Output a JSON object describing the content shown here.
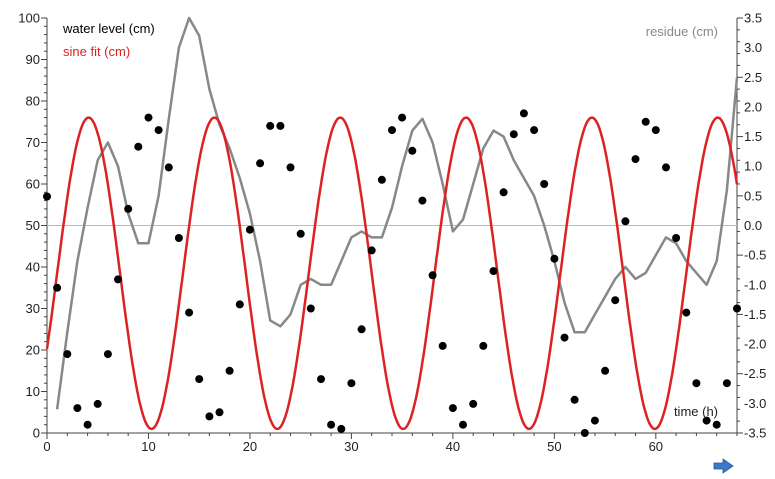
{
  "chart_data": {
    "type": "line",
    "title": "",
    "xlabel": "time (h)",
    "ylabel_left": "",
    "ylabel_right": "",
    "xlim": [
      0,
      68
    ],
    "xticks": [
      0,
      10,
      20,
      30,
      40,
      50,
      60
    ],
    "ylim_left": [
      0,
      100
    ],
    "yticks_left": [
      0,
      10,
      20,
      30,
      40,
      50,
      60,
      70,
      80,
      90,
      100
    ],
    "ylim_right": [
      -3.5,
      3.5
    ],
    "yticks_right": [
      "-3.5",
      "-3.0",
      "-2.5",
      "-2.0",
      "-1.5",
      "-1.0",
      "-0.5",
      "0.0",
      "0.5",
      "1.0",
      "1.5",
      "2.0",
      "2.5",
      "3.0",
      "3.5"
    ],
    "grid": false,
    "legend_left": [
      {
        "name": "water level (cm)",
        "color": "#000000"
      },
      {
        "name": "sine fit (cm)",
        "color": "#dd2222"
      }
    ],
    "legend_right": {
      "name": "residue (cm)",
      "color": "#888888"
    },
    "sine_fit": {
      "mean": 38.5,
      "amplitude": 37.5,
      "period_h": 12.4,
      "phase_h": 13.4,
      "color": "#dd2222"
    },
    "water_level": {
      "color": "#000000",
      "x": [
        0,
        1,
        2,
        3,
        4,
        5,
        6,
        7,
        8,
        9,
        10,
        11,
        12,
        13,
        14,
        15,
        16,
        17,
        18,
        19,
        20,
        21,
        22,
        23,
        24,
        25,
        26,
        27,
        28,
        29,
        30,
        31,
        32,
        33,
        34,
        35,
        36,
        37,
        38,
        39,
        40,
        41,
        42,
        43,
        44,
        45,
        46,
        47,
        48,
        49,
        50,
        51,
        52,
        53,
        54,
        55,
        56,
        57,
        58,
        59,
        60,
        61,
        62,
        63,
        64,
        65,
        66,
        67,
        68
      ],
      "y": [
        57,
        35,
        19,
        6,
        2,
        7,
        19,
        37,
        54,
        69,
        76,
        73,
        64,
        47,
        29,
        13,
        4,
        5,
        15,
        31,
        49,
        65,
        74,
        74,
        64,
        48,
        30,
        13,
        2,
        1,
        12,
        25,
        44,
        61,
        73,
        76,
        68,
        56,
        38,
        21,
        6,
        2,
        7,
        21,
        39,
        58,
        72,
        77,
        73,
        60,
        42,
        23,
        8,
        0,
        3,
        15,
        32,
        51,
        66,
        75,
        73,
        64,
        47,
        29,
        12,
        3,
        2,
        12,
        30
      ]
    },
    "residue": {
      "color": "#888888",
      "x": [
        1,
        2,
        3,
        4,
        5,
        6,
        7,
        8,
        9,
        10,
        11,
        12,
        13,
        14,
        15,
        16,
        17,
        18,
        19,
        20,
        21,
        22,
        23,
        24,
        25,
        26,
        27,
        28,
        29,
        30,
        31,
        32,
        33,
        34,
        35,
        36,
        37,
        38,
        39,
        40,
        41,
        42,
        43,
        44,
        45,
        46,
        47,
        48,
        49,
        50,
        51,
        52,
        53,
        54,
        55,
        56,
        57,
        58,
        59,
        60,
        61,
        62,
        63,
        64,
        65,
        66,
        67,
        68
      ],
      "y": [
        -3.1,
        -1.8,
        -0.6,
        0.3,
        1.1,
        1.4,
        1.0,
        0.2,
        -0.3,
        -0.3,
        0.5,
        1.8,
        3.0,
        3.5,
        3.2,
        2.3,
        1.7,
        1.3,
        0.8,
        0.2,
        -0.6,
        -1.6,
        -1.7,
        -1.5,
        -1.0,
        -0.9,
        -1.0,
        -1.0,
        -0.6,
        -0.2,
        -0.1,
        -0.2,
        -0.2,
        0.3,
        1.0,
        1.6,
        1.8,
        1.4,
        0.7,
        -0.1,
        0.1,
        0.7,
        1.3,
        1.6,
        1.5,
        1.1,
        0.8,
        0.5,
        0.0,
        -0.6,
        -1.3,
        -1.8,
        -1.8,
        -1.5,
        -1.2,
        -0.9,
        -0.7,
        -0.9,
        -0.8,
        -0.5,
        -0.2,
        -0.3,
        -0.6,
        -0.8,
        -1.0,
        -0.6,
        0.6,
        2.5
      ]
    },
    "zero_line": {
      "value": 0,
      "axis": "right",
      "color": "#bbbbbb"
    }
  },
  "controls": {
    "next_arrow": "arrow-right-icon",
    "arrow_color": "#3a78c8"
  }
}
